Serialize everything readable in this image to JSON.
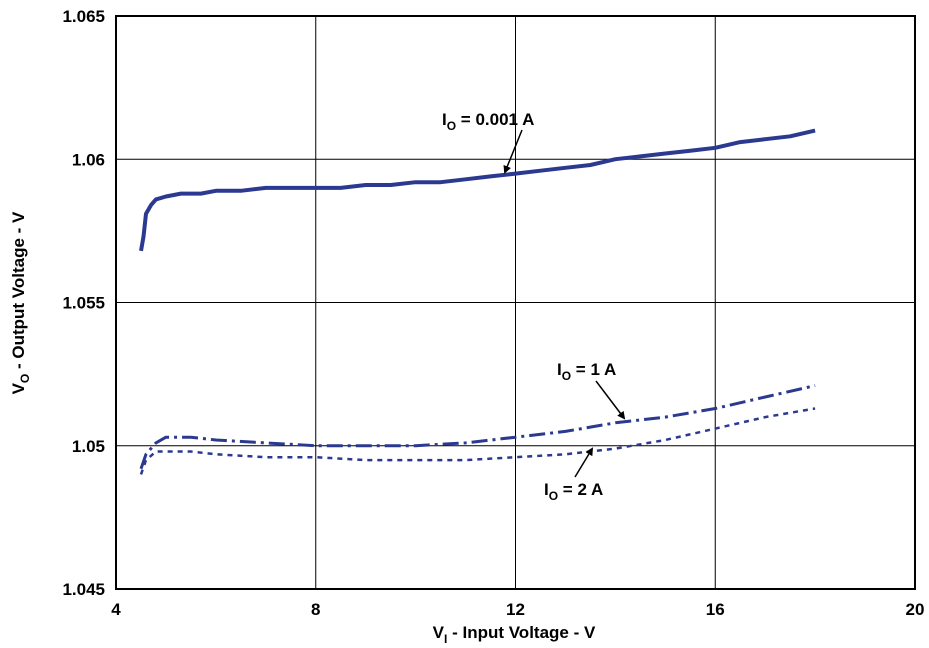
{
  "chart_data": {
    "type": "line",
    "xlabel_parts": [
      "V",
      "I",
      " - Input Voltage - V"
    ],
    "ylabel_parts": [
      "V",
      "O",
      " - Output Voltage - V"
    ],
    "xlim": [
      4,
      20
    ],
    "ylim": [
      1.045,
      1.065
    ],
    "x_ticks": [
      "4",
      "8",
      "12",
      "16",
      "20"
    ],
    "y_ticks": [
      "1.045",
      "1.05",
      "1.055",
      "1.06",
      "1.065"
    ],
    "grid": true,
    "series": [
      {
        "label_parts": [
          "I",
          "O",
          " = 0.001 A"
        ],
        "line_style": "solid",
        "color": "#2b3990",
        "x": [
          4.5,
          4.55,
          4.6,
          4.7,
          4.8,
          5.0,
          5.3,
          5.7,
          6.0,
          6.5,
          7.0,
          7.5,
          8.0,
          8.5,
          9.0,
          9.5,
          10.0,
          10.5,
          11.0,
          11.5,
          12.0,
          12.5,
          13.0,
          13.5,
          14.0,
          14.5,
          15.0,
          15.5,
          16.0,
          16.5,
          17.0,
          17.5,
          18.0
        ],
        "y": [
          1.0568,
          1.0573,
          1.0581,
          1.0584,
          1.0586,
          1.0587,
          1.0588,
          1.0588,
          1.0589,
          1.0589,
          1.059,
          1.059,
          1.059,
          1.059,
          1.0591,
          1.0591,
          1.0592,
          1.0592,
          1.0593,
          1.0594,
          1.0595,
          1.0596,
          1.0597,
          1.0598,
          1.06,
          1.0601,
          1.0602,
          1.0603,
          1.0604,
          1.0606,
          1.0607,
          1.0608,
          1.061
        ]
      },
      {
        "label_parts": [
          "I",
          "O",
          " = 1 A"
        ],
        "line_style": "dashdot",
        "color": "#2b3990",
        "x": [
          4.5,
          4.6,
          4.8,
          5.0,
          5.5,
          6.0,
          7.0,
          8.0,
          9.0,
          10.0,
          11.0,
          12.0,
          13.0,
          14.0,
          15.0,
          16.0,
          17.0,
          18.0
        ],
        "y": [
          1.0492,
          1.0497,
          1.0501,
          1.0503,
          1.0503,
          1.0502,
          1.0501,
          1.05,
          1.05,
          1.05,
          1.0501,
          1.0503,
          1.0505,
          1.0508,
          1.051,
          1.0513,
          1.0517,
          1.0521
        ]
      },
      {
        "label_parts": [
          "I",
          "O",
          " = 2 A"
        ],
        "line_style": "dotted",
        "color": "#2b3990",
        "x": [
          4.5,
          4.6,
          4.8,
          5.0,
          5.5,
          6.0,
          7.0,
          8.0,
          9.0,
          10.0,
          11.0,
          12.0,
          13.0,
          14.0,
          15.0,
          16.0,
          17.0,
          18.0
        ],
        "y": [
          1.049,
          1.0495,
          1.0498,
          1.0498,
          1.0498,
          1.0497,
          1.0496,
          1.0496,
          1.0495,
          1.0495,
          1.0495,
          1.0496,
          1.0497,
          1.0499,
          1.0502,
          1.0506,
          1.051,
          1.0513
        ]
      }
    ]
  }
}
